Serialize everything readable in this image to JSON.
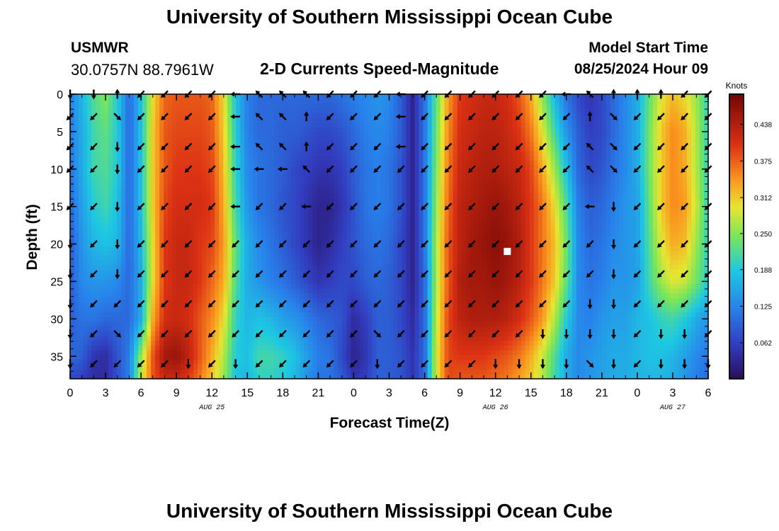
{
  "header": {
    "title": "University of Southern Mississippi Ocean Cube",
    "station_id": "USMWR",
    "station_coords": "30.0757N  88.7961W",
    "subtitle": "2-D Currents Speed-Magnitude",
    "model_start_label": "Model Start Time",
    "model_start_value": "08/25/2024 Hour 09"
  },
  "footer": {
    "title": "University of Southern Mississippi Ocean Cube"
  },
  "chart_data": {
    "type": "heatmap",
    "title": "2-D Currents Speed-Magnitude",
    "xlabel": "Forecast Time(Z)",
    "ylabel": "Depth (ft)",
    "x_ticks": [
      "0",
      "3",
      "6",
      "9",
      "12",
      "15",
      "18",
      "21",
      "0",
      "3",
      "6",
      "9",
      "12",
      "15",
      "18",
      "21",
      "0",
      "3",
      "6"
    ],
    "x_hours_range": [
      0,
      54
    ],
    "date_labels": [
      {
        "hour": 12,
        "text": "AUG 25"
      },
      {
        "hour": 36,
        "text": "AUG 26"
      },
      {
        "hour": 51,
        "text": "AUG 27"
      }
    ],
    "y_ticks": [
      "0",
      "5",
      "10",
      "15",
      "20",
      "25",
      "30",
      "35"
    ],
    "ylim": [
      0,
      38
    ],
    "colorbar": {
      "unit": "Knots",
      "range": [
        0.0,
        0.49
      ],
      "ticks": [
        "0.062",
        "0.125",
        "0.188",
        "0.250",
        "0.312",
        "0.375",
        "0.438"
      ]
    },
    "marker": {
      "hour": 37,
      "depth_ft": 21
    },
    "speed_hours": [
      0,
      1,
      2,
      3,
      4,
      5,
      6,
      7,
      8,
      9,
      10,
      11,
      12,
      13,
      14,
      15,
      16,
      17,
      18,
      19,
      20,
      21,
      22,
      23,
      24,
      25,
      26,
      27,
      28,
      29,
      30,
      31,
      32,
      33,
      34,
      35,
      36,
      37,
      38,
      39,
      40,
      41,
      42,
      43,
      44,
      45,
      46,
      47,
      48,
      49,
      50,
      51,
      52,
      53,
      54
    ],
    "speed_depths_ft": [
      0,
      5,
      10,
      15,
      20,
      25,
      30,
      35,
      38
    ],
    "speed_knots": [
      [
        0.12,
        0.12,
        0.11,
        0.1,
        0.09,
        0.09,
        0.09,
        0.1,
        0.07
      ],
      [
        0.17,
        0.16,
        0.16,
        0.15,
        0.14,
        0.13,
        0.11,
        0.09,
        0.06
      ],
      [
        0.22,
        0.21,
        0.21,
        0.19,
        0.17,
        0.14,
        0.11,
        0.05,
        0.04
      ],
      [
        0.25,
        0.23,
        0.22,
        0.21,
        0.18,
        0.14,
        0.1,
        0.04,
        0.04
      ],
      [
        0.19,
        0.19,
        0.19,
        0.18,
        0.17,
        0.13,
        0.1,
        0.08,
        0.08
      ],
      [
        0.1,
        0.1,
        0.1,
        0.1,
        0.1,
        0.1,
        0.1,
        0.12,
        0.12
      ],
      [
        0.18,
        0.18,
        0.18,
        0.18,
        0.17,
        0.16,
        0.16,
        0.26,
        0.28
      ],
      [
        0.3,
        0.31,
        0.31,
        0.31,
        0.3,
        0.3,
        0.33,
        0.38,
        0.38
      ],
      [
        0.37,
        0.38,
        0.38,
        0.39,
        0.4,
        0.4,
        0.41,
        0.45,
        0.42
      ],
      [
        0.38,
        0.39,
        0.4,
        0.41,
        0.42,
        0.42,
        0.42,
        0.46,
        0.42
      ],
      [
        0.38,
        0.39,
        0.4,
        0.41,
        0.42,
        0.42,
        0.41,
        0.43,
        0.4
      ],
      [
        0.38,
        0.39,
        0.4,
        0.41,
        0.4,
        0.4,
        0.38,
        0.38,
        0.36
      ],
      [
        0.37,
        0.38,
        0.39,
        0.4,
        0.39,
        0.37,
        0.35,
        0.33,
        0.31
      ],
      [
        0.3,
        0.31,
        0.32,
        0.33,
        0.34,
        0.33,
        0.3,
        0.27,
        0.26
      ],
      [
        0.18,
        0.19,
        0.2,
        0.21,
        0.23,
        0.22,
        0.2,
        0.19,
        0.18
      ],
      [
        0.12,
        0.12,
        0.13,
        0.14,
        0.16,
        0.16,
        0.17,
        0.18,
        0.17
      ],
      [
        0.1,
        0.1,
        0.11,
        0.11,
        0.13,
        0.14,
        0.18,
        0.21,
        0.2
      ],
      [
        0.1,
        0.1,
        0.1,
        0.1,
        0.11,
        0.12,
        0.17,
        0.21,
        0.2
      ],
      [
        0.1,
        0.09,
        0.09,
        0.08,
        0.09,
        0.11,
        0.15,
        0.2,
        0.19
      ],
      [
        0.1,
        0.09,
        0.07,
        0.07,
        0.07,
        0.09,
        0.14,
        0.18,
        0.17
      ],
      [
        0.1,
        0.08,
        0.06,
        0.05,
        0.05,
        0.07,
        0.12,
        0.15,
        0.14
      ],
      [
        0.1,
        0.07,
        0.05,
        0.03,
        0.03,
        0.05,
        0.1,
        0.12,
        0.11
      ],
      [
        0.1,
        0.07,
        0.05,
        0.03,
        0.04,
        0.06,
        0.09,
        0.11,
        0.11
      ],
      [
        0.11,
        0.08,
        0.06,
        0.05,
        0.06,
        0.07,
        0.08,
        0.07,
        0.09
      ],
      [
        0.12,
        0.1,
        0.09,
        0.08,
        0.08,
        0.07,
        0.04,
        0.03,
        0.05
      ],
      [
        0.13,
        0.12,
        0.11,
        0.11,
        0.1,
        0.09,
        0.06,
        0.05,
        0.06
      ],
      [
        0.14,
        0.13,
        0.12,
        0.12,
        0.11,
        0.1,
        0.09,
        0.09,
        0.09
      ],
      [
        0.13,
        0.12,
        0.11,
        0.11,
        0.1,
        0.09,
        0.09,
        0.09,
        0.09
      ],
      [
        0.09,
        0.09,
        0.08,
        0.08,
        0.07,
        0.07,
        0.07,
        0.08,
        0.08
      ],
      [
        0.03,
        0.03,
        0.03,
        0.03,
        0.03,
        0.03,
        0.04,
        0.05,
        0.05
      ],
      [
        0.11,
        0.11,
        0.11,
        0.11,
        0.11,
        0.1,
        0.1,
        0.1,
        0.1
      ],
      [
        0.23,
        0.24,
        0.25,
        0.26,
        0.27,
        0.27,
        0.28,
        0.29,
        0.29
      ],
      [
        0.34,
        0.35,
        0.36,
        0.37,
        0.38,
        0.38,
        0.39,
        0.39,
        0.39
      ],
      [
        0.4,
        0.41,
        0.42,
        0.43,
        0.43,
        0.44,
        0.43,
        0.4,
        0.38
      ],
      [
        0.41,
        0.42,
        0.43,
        0.44,
        0.45,
        0.45,
        0.44,
        0.4,
        0.38
      ],
      [
        0.42,
        0.43,
        0.44,
        0.45,
        0.46,
        0.45,
        0.44,
        0.4,
        0.38
      ],
      [
        0.42,
        0.43,
        0.44,
        0.46,
        0.47,
        0.46,
        0.44,
        0.39,
        0.37
      ],
      [
        0.41,
        0.42,
        0.43,
        0.45,
        0.46,
        0.45,
        0.43,
        0.38,
        0.36
      ],
      [
        0.38,
        0.4,
        0.42,
        0.43,
        0.44,
        0.43,
        0.41,
        0.36,
        0.34
      ],
      [
        0.33,
        0.36,
        0.39,
        0.4,
        0.4,
        0.4,
        0.38,
        0.33,
        0.31
      ],
      [
        0.25,
        0.29,
        0.33,
        0.36,
        0.36,
        0.36,
        0.34,
        0.28,
        0.27
      ],
      [
        0.17,
        0.21,
        0.26,
        0.3,
        0.32,
        0.31,
        0.27,
        0.22,
        0.21
      ],
      [
        0.11,
        0.14,
        0.18,
        0.22,
        0.24,
        0.23,
        0.19,
        0.16,
        0.16
      ],
      [
        0.07,
        0.09,
        0.1,
        0.12,
        0.13,
        0.13,
        0.13,
        0.13,
        0.13
      ],
      [
        0.05,
        0.06,
        0.07,
        0.09,
        0.1,
        0.11,
        0.12,
        0.14,
        0.14
      ],
      [
        0.07,
        0.07,
        0.08,
        0.1,
        0.11,
        0.12,
        0.14,
        0.15,
        0.15
      ],
      [
        0.1,
        0.1,
        0.11,
        0.12,
        0.13,
        0.14,
        0.15,
        0.16,
        0.16
      ],
      [
        0.13,
        0.13,
        0.13,
        0.14,
        0.14,
        0.14,
        0.15,
        0.16,
        0.16
      ],
      [
        0.16,
        0.16,
        0.16,
        0.15,
        0.15,
        0.15,
        0.17,
        0.17,
        0.17
      ],
      [
        0.23,
        0.24,
        0.24,
        0.23,
        0.22,
        0.21,
        0.18,
        0.18,
        0.17
      ],
      [
        0.29,
        0.31,
        0.31,
        0.31,
        0.29,
        0.26,
        0.2,
        0.18,
        0.17
      ],
      [
        0.32,
        0.35,
        0.35,
        0.35,
        0.33,
        0.29,
        0.21,
        0.17,
        0.16
      ],
      [
        0.3,
        0.33,
        0.33,
        0.34,
        0.32,
        0.28,
        0.19,
        0.15,
        0.14
      ],
      [
        0.26,
        0.27,
        0.27,
        0.28,
        0.26,
        0.24,
        0.16,
        0.13,
        0.12
      ],
      [
        0.2,
        0.2,
        0.2,
        0.2,
        0.2,
        0.19,
        0.14,
        0.11,
        0.1
      ]
    ],
    "vectors": {
      "hours": [
        0,
        2,
        4,
        6,
        8,
        10,
        12,
        14,
        16,
        18,
        20,
        22,
        24,
        26,
        28,
        30,
        32,
        34,
        36,
        38,
        40,
        42,
        44,
        46,
        48,
        50,
        52,
        54
      ],
      "depths_ft": [
        0,
        3,
        7,
        10,
        15,
        20,
        24,
        28,
        32,
        36
      ],
      "direction_deg": [
        [
          90,
          135,
          135,
          135,
          135,
          90,
          90,
          90,
          90,
          90
        ],
        [
          90,
          135,
          135,
          135,
          135,
          135,
          135,
          135,
          135,
          135
        ],
        [
          270,
          45,
          90,
          90,
          90,
          90,
          90,
          135,
          45,
          135
        ],
        [
          135,
          135,
          135,
          135,
          135,
          135,
          135,
          135,
          135,
          135
        ],
        [
          135,
          135,
          135,
          135,
          135,
          135,
          135,
          135,
          135,
          135
        ],
        [
          135,
          135,
          135,
          135,
          135,
          135,
          135,
          135,
          135,
          90
        ],
        [
          135,
          135,
          135,
          135,
          135,
          135,
          135,
          135,
          135,
          135
        ],
        [
          180,
          180,
          180,
          180,
          180,
          135,
          135,
          135,
          135,
          90
        ],
        [
          225,
          225,
          225,
          180,
          135,
          135,
          135,
          135,
          135,
          135
        ],
        [
          225,
          225,
          225,
          180,
          135,
          135,
          135,
          135,
          135,
          135
        ],
        [
          225,
          270,
          270,
          225,
          180,
          135,
          135,
          135,
          135,
          135
        ],
        [
          135,
          135,
          135,
          135,
          135,
          135,
          135,
          135,
          135,
          135
        ],
        [
          135,
          135,
          135,
          135,
          135,
          135,
          135,
          135,
          135,
          135
        ],
        [
          135,
          135,
          135,
          135,
          135,
          135,
          135,
          135,
          45,
          90
        ],
        [
          180,
          180,
          180,
          135,
          135,
          135,
          135,
          135,
          135,
          135
        ],
        [
          135,
          135,
          135,
          135,
          135,
          135,
          135,
          135,
          135,
          135
        ],
        [
          135,
          135,
          135,
          135,
          135,
          135,
          135,
          135,
          135,
          135
        ],
        [
          135,
          135,
          135,
          135,
          135,
          135,
          135,
          135,
          135,
          135
        ],
        [
          135,
          135,
          135,
          135,
          135,
          135,
          135,
          135,
          135,
          90
        ],
        [
          135,
          135,
          135,
          135,
          135,
          135,
          135,
          135,
          135,
          90
        ],
        [
          135,
          135,
          135,
          135,
          135,
          135,
          135,
          135,
          90,
          90
        ],
        [
          180,
          135,
          135,
          135,
          135,
          135,
          135,
          135,
          90,
          90
        ],
        [
          225,
          270,
          225,
          225,
          180,
          135,
          135,
          90,
          90,
          45
        ],
        [
          270,
          45,
          45,
          45,
          90,
          90,
          90,
          90,
          90,
          90
        ],
        [
          270,
          135,
          135,
          135,
          135,
          135,
          135,
          135,
          135,
          135
        ],
        [
          270,
          135,
          135,
          135,
          135,
          135,
          135,
          135,
          90,
          90
        ],
        [
          135,
          135,
          135,
          135,
          135,
          135,
          135,
          135,
          90,
          90
        ],
        [
          135,
          135,
          135,
          135,
          135,
          135,
          135,
          135,
          135,
          90
        ]
      ]
    }
  }
}
